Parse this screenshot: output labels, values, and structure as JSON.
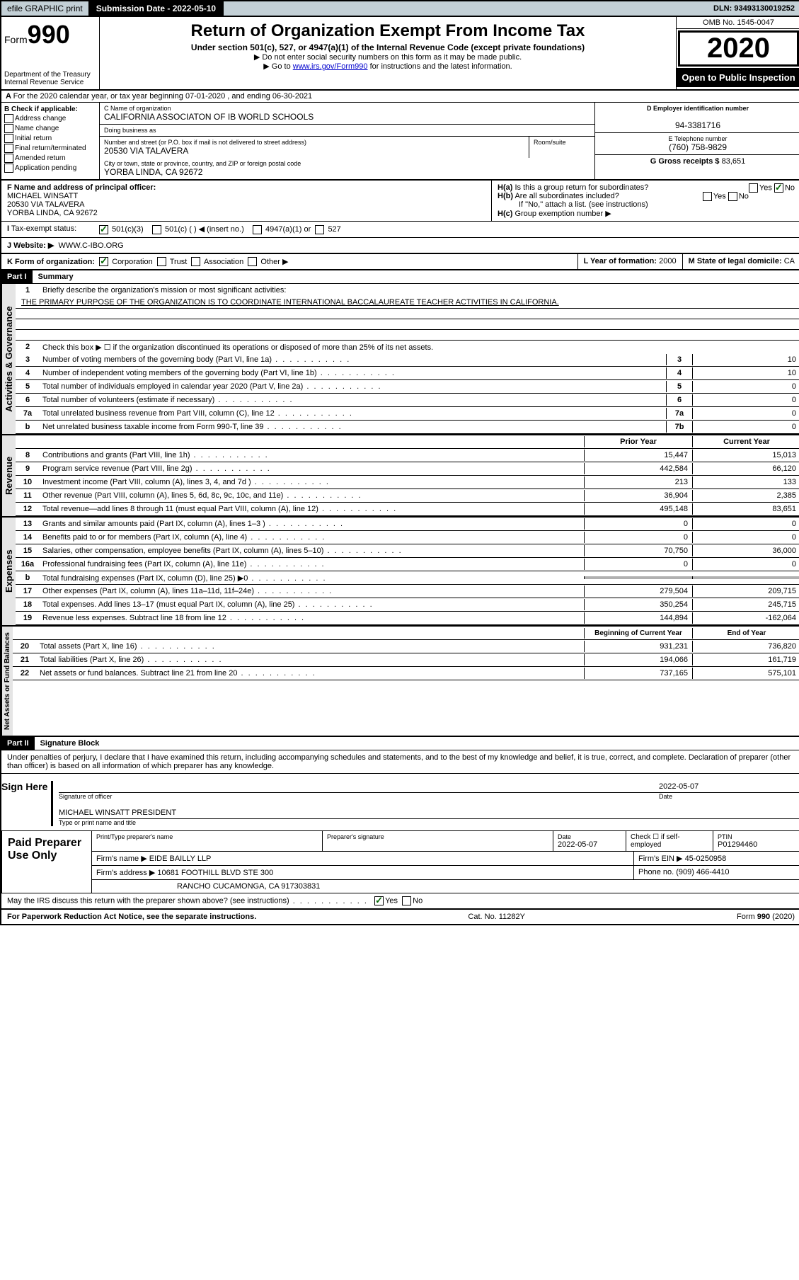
{
  "topbar": {
    "efile": "efile GRAPHIC print",
    "submission": "Submission Date - 2022-05-10",
    "dln": "DLN: 93493130019252"
  },
  "header": {
    "form_prefix": "Form",
    "form_num": "990",
    "title": "Return of Organization Exempt From Income Tax",
    "subtitle": "Under section 501(c), 527, or 4947(a)(1) of the Internal Revenue Code (except private foundations)",
    "note1": "▶ Do not enter social security numbers on this form as it may be made public.",
    "note2_pre": "▶ Go to ",
    "note2_link": "www.irs.gov/Form990",
    "note2_post": " for instructions and the latest information.",
    "dept": "Department of the Treasury\nInternal Revenue Service",
    "omb": "OMB No. 1545-0047",
    "year": "2020",
    "inspect": "Open to Public Inspection"
  },
  "a_row": "For the 2020 calendar year, or tax year beginning 07-01-2020    , and ending 06-30-2021",
  "b_checks": {
    "title": "B Check if applicable:",
    "items": [
      "Address change",
      "Name change",
      "Initial return",
      "Final return/terminated",
      "Amended return",
      "Application pending"
    ]
  },
  "c": {
    "name_lbl": "C Name of organization",
    "name": "CALIFORNIA ASSOCIATON OF IB WORLD SCHOOLS",
    "dba_lbl": "Doing business as",
    "dba": "",
    "addr_lbl": "Number and street (or P.O. box if mail is not delivered to street address)",
    "room_lbl": "Room/suite",
    "addr": "20530 VIA TALAVERA",
    "city_lbl": "City or town, state or province, country, and ZIP or foreign postal code",
    "city": "YORBA LINDA, CA  92672"
  },
  "d": {
    "lbl": "D Employer identification number",
    "val": "94-3381716"
  },
  "e": {
    "lbl": "E Telephone number",
    "val": "(760) 758-9829"
  },
  "g": {
    "lbl": "G Gross receipts $",
    "val": "83,651"
  },
  "f": {
    "lbl": "F  Name and address of principal officer:",
    "name": "MICHAEL WINSATT",
    "addr1": "20530 VIA TALAVERA",
    "addr2": "YORBA LINDA, CA  92672"
  },
  "h": {
    "a": "Is this a group return for subordinates?",
    "b": "Are all subordinates included?",
    "b_note": "If \"No,\" attach a list. (see instructions)",
    "c": "Group exemption number ▶"
  },
  "tax_status": {
    "lbl": "Tax-exempt status:",
    "opts": [
      "501(c)(3)",
      "501(c) (  ) ◀ (insert no.)",
      "4947(a)(1) or",
      "527"
    ]
  },
  "website": {
    "lbl": "J   Website: ▶",
    "val": "WWW.C-IBO.ORG"
  },
  "k": {
    "lbl": "K Form of organization:",
    "opts": [
      "Corporation",
      "Trust",
      "Association",
      "Other ▶"
    ]
  },
  "l": {
    "lbl": "L Year of formation:",
    "val": "2000"
  },
  "m": {
    "lbl": "M State of legal domicile:",
    "val": "CA"
  },
  "part1": {
    "hdr": "Part I",
    "title": "Summary",
    "line1": "Briefly describe the organization's mission or most significant activities:",
    "mission": "THE PRIMARY PURPOSE OF THE ORGANIZATION IS TO COORDINATE INTERNATIONAL BACCALAUREATE TEACHER ACTIVITIES IN CALIFORNIA.",
    "line2": "Check this box ▶ ☐  if the organization discontinued its operations or disposed of more than 25% of its net assets.",
    "side1": "Activities & Governance",
    "rows_gov": [
      {
        "n": "3",
        "t": "Number of voting members of the governing body (Part VI, line 1a)",
        "b": "3",
        "v": "10"
      },
      {
        "n": "4",
        "t": "Number of independent voting members of the governing body (Part VI, line 1b)",
        "b": "4",
        "v": "10"
      },
      {
        "n": "5",
        "t": "Total number of individuals employed in calendar year 2020 (Part V, line 2a)",
        "b": "5",
        "v": "0"
      },
      {
        "n": "6",
        "t": "Total number of volunteers (estimate if necessary)",
        "b": "6",
        "v": "0"
      },
      {
        "n": "7a",
        "t": "Total unrelated business revenue from Part VIII, column (C), line 12",
        "b": "7a",
        "v": "0"
      },
      {
        "n": "b",
        "t": "Net unrelated business taxable income from Form 990-T, line 39",
        "b": "7b",
        "v": "0"
      }
    ],
    "col_prior": "Prior Year",
    "col_current": "Current Year",
    "side2": "Revenue",
    "rows_rev": [
      {
        "n": "8",
        "t": "Contributions and grants (Part VIII, line 1h)",
        "p": "15,447",
        "c": "15,013"
      },
      {
        "n": "9",
        "t": "Program service revenue (Part VIII, line 2g)",
        "p": "442,584",
        "c": "66,120"
      },
      {
        "n": "10",
        "t": "Investment income (Part VIII, column (A), lines 3, 4, and 7d )",
        "p": "213",
        "c": "133"
      },
      {
        "n": "11",
        "t": "Other revenue (Part VIII, column (A), lines 5, 6d, 8c, 9c, 10c, and 11e)",
        "p": "36,904",
        "c": "2,385"
      },
      {
        "n": "12",
        "t": "Total revenue—add lines 8 through 11 (must equal Part VIII, column (A), line 12)",
        "p": "495,148",
        "c": "83,651"
      }
    ],
    "side3": "Expenses",
    "rows_exp": [
      {
        "n": "13",
        "t": "Grants and similar amounts paid (Part IX, column (A), lines 1–3 )",
        "p": "0",
        "c": "0"
      },
      {
        "n": "14",
        "t": "Benefits paid to or for members (Part IX, column (A), line 4)",
        "p": "0",
        "c": "0"
      },
      {
        "n": "15",
        "t": "Salaries, other compensation, employee benefits (Part IX, column (A), lines 5–10)",
        "p": "70,750",
        "c": "36,000"
      },
      {
        "n": "16a",
        "t": "Professional fundraising fees (Part IX, column (A), line 11e)",
        "p": "0",
        "c": "0"
      },
      {
        "n": "b",
        "t": "Total fundraising expenses (Part IX, column (D), line 25) ▶0",
        "p": "",
        "c": "",
        "shade": true
      },
      {
        "n": "17",
        "t": "Other expenses (Part IX, column (A), lines 11a–11d, 11f–24e)",
        "p": "279,504",
        "c": "209,715"
      },
      {
        "n": "18",
        "t": "Total expenses. Add lines 13–17 (must equal Part IX, column (A), line 25)",
        "p": "350,254",
        "c": "245,715"
      },
      {
        "n": "19",
        "t": "Revenue less expenses. Subtract line 18 from line 12",
        "p": "144,894",
        "c": "-162,064"
      }
    ],
    "col_begin": "Beginning of Current Year",
    "col_end": "End of Year",
    "side4": "Net Assets or Fund Balances",
    "rows_net": [
      {
        "n": "20",
        "t": "Total assets (Part X, line 16)",
        "p": "931,231",
        "c": "736,820"
      },
      {
        "n": "21",
        "t": "Total liabilities (Part X, line 26)",
        "p": "194,066",
        "c": "161,719"
      },
      {
        "n": "22",
        "t": "Net assets or fund balances. Subtract line 21 from line 20",
        "p": "737,165",
        "c": "575,101"
      }
    ]
  },
  "part2": {
    "hdr": "Part II",
    "title": "Signature Block",
    "decl": "Under penalties of perjury, I declare that I have examined this return, including accompanying schedules and statements, and to the best of my knowledge and belief, it is true, correct, and complete. Declaration of preparer (other than officer) is based on all information of which preparer has any knowledge.",
    "sign_here": "Sign Here",
    "sig_officer": "Signature of officer",
    "sig_date": "2022-05-07",
    "date_lbl": "Date",
    "sig_name": "MICHAEL WINSATT PRESIDENT",
    "sig_name_lbl": "Type or print name and title",
    "paid": "Paid Preparer Use Only",
    "prep_name_lbl": "Print/Type preparer's name",
    "prep_sig_lbl": "Preparer's signature",
    "prep_date_lbl": "Date",
    "prep_date": "2022-05-07",
    "self_emp": "Check ☐ if self-employed",
    "ptin_lbl": "PTIN",
    "ptin": "P01294460",
    "firm_name_lbl": "Firm's name    ▶",
    "firm_name": "EIDE BAILLY LLP",
    "firm_ein_lbl": "Firm's EIN ▶",
    "firm_ein": "45-0250958",
    "firm_addr_lbl": "Firm's address ▶",
    "firm_addr1": "10681 FOOTHILL BLVD STE 300",
    "firm_addr2": "RANCHO CUCAMONGA, CA  917303831",
    "phone_lbl": "Phone no.",
    "phone": "(909) 466-4410",
    "discuss": "May the IRS discuss this return with the preparer shown above? (see instructions)"
  },
  "footer": {
    "left": "For Paperwork Reduction Act Notice, see the separate instructions.",
    "mid": "Cat. No. 11282Y",
    "right": "Form 990 (2020)"
  }
}
